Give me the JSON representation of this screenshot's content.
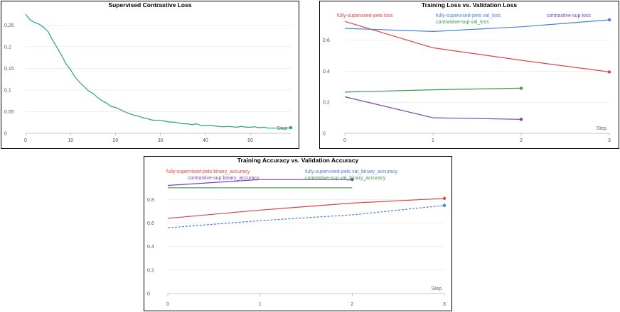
{
  "chart_data": [
    {
      "type": "line",
      "title": "Supervised Contrastive Loss",
      "xlabel": "Step",
      "ylabel": "",
      "xlim": [
        0,
        59
      ],
      "ylim": [
        0,
        0.28
      ],
      "xticks": [
        0,
        10,
        20,
        30,
        40,
        50
      ],
      "yticks": [
        0,
        0.05,
        0.1,
        0.15,
        0.2,
        0.25
      ],
      "ytick_labels": [
        "0",
        "0.05",
        "0.1",
        "0.15",
        "0.2",
        "0.25"
      ],
      "grid": true,
      "series": [
        {
          "name": "supervised contrastive loss",
          "color": "#2a9d8f",
          "dash": false,
          "end_marker": true,
          "x": [
            0,
            1,
            2,
            3,
            4,
            5,
            6,
            7,
            8,
            9,
            10,
            11,
            12,
            13,
            14,
            15,
            16,
            17,
            18,
            19,
            20,
            21,
            22,
            23,
            24,
            25,
            26,
            27,
            28,
            29,
            30,
            31,
            32,
            33,
            34,
            35,
            36,
            37,
            38,
            39,
            40,
            41,
            42,
            43,
            44,
            45,
            46,
            47,
            48,
            49,
            50,
            51,
            52,
            53,
            54,
            55,
            56,
            57,
            58,
            59
          ],
          "y": [
            0.275,
            0.262,
            0.256,
            0.252,
            0.245,
            0.235,
            0.215,
            0.198,
            0.18,
            0.16,
            0.147,
            0.13,
            0.118,
            0.108,
            0.098,
            0.092,
            0.083,
            0.075,
            0.07,
            0.062,
            0.06,
            0.055,
            0.05,
            0.046,
            0.042,
            0.04,
            0.036,
            0.034,
            0.031,
            0.03,
            0.03,
            0.028,
            0.026,
            0.026,
            0.024,
            0.022,
            0.022,
            0.02,
            0.022,
            0.018,
            0.018,
            0.018,
            0.017,
            0.016,
            0.015,
            0.016,
            0.015,
            0.014,
            0.016,
            0.014,
            0.014,
            0.015,
            0.013,
            0.014,
            0.012,
            0.012,
            0.012,
            0.011,
            0.012,
            0.013
          ]
        }
      ]
    },
    {
      "type": "line",
      "title": "Training Loss vs. Validation Loss",
      "xlabel": "Step",
      "ylabel": "",
      "xlim": [
        0,
        3
      ],
      "ylim": [
        0,
        0.78
      ],
      "xticks": [
        0,
        1,
        2,
        3
      ],
      "yticks": [
        0,
        0.2,
        0.4,
        0.6
      ],
      "ytick_labels": [
        "0",
        "0.2",
        "0.4",
        "0.6"
      ],
      "grid": true,
      "series": [
        {
          "name": "fully-supervised-pets loss",
          "color": "#e04444",
          "dash": false,
          "end_marker": true,
          "x": [
            0,
            1,
            2,
            3
          ],
          "y": [
            0.72,
            0.55,
            0.47,
            0.395
          ]
        },
        {
          "name": "fully-supervised-pets val_loss",
          "color": "#4a7fd4",
          "dash": false,
          "end_marker": true,
          "x": [
            0,
            1,
            2,
            3
          ],
          "y": [
            0.675,
            0.655,
            0.685,
            0.73
          ]
        },
        {
          "name": "contrastive-sup val_loss",
          "color": "#3a9a4a",
          "dash": false,
          "end_marker": true,
          "x": [
            0,
            1,
            2
          ],
          "y": [
            0.265,
            0.28,
            0.29
          ]
        },
        {
          "name": "contrastive-sup loss",
          "color": "#7a3fb8",
          "dash": false,
          "end_marker": true,
          "x": [
            0,
            1,
            2
          ],
          "y": [
            0.235,
            0.1,
            0.09
          ]
        }
      ]
    },
    {
      "type": "line",
      "title": "Training Accuracy vs. Validation Accuracy",
      "xlabel": "Step",
      "ylabel": "",
      "xlim": [
        0,
        3
      ],
      "ylim": [
        0,
        1.08
      ],
      "xticks": [
        0,
        1,
        2,
        3
      ],
      "yticks": [
        0,
        0.2,
        0.4,
        0.6,
        0.8
      ],
      "ytick_labels": [
        "0",
        "0.2",
        "0.4",
        "0.6",
        "0.8"
      ],
      "grid": true,
      "series": [
        {
          "name": "fully-supervised-pets binary_accuracy",
          "color": "#e04444",
          "dash": false,
          "end_marker": true,
          "x": [
            0,
            1,
            2,
            3
          ],
          "y": [
            0.64,
            0.71,
            0.77,
            0.81
          ]
        },
        {
          "name": "contrastive-sup binary_accuracy",
          "color": "#7a3fb8",
          "dash": false,
          "end_marker": true,
          "x": [
            0,
            1,
            2
          ],
          "y": [
            0.92,
            0.97,
            0.97
          ]
        },
        {
          "name": "fully-supervised-pets val_binary_accuracy",
          "color": "#4a7fd4",
          "dash": true,
          "end_marker": true,
          "x": [
            0,
            1,
            2,
            3
          ],
          "y": [
            0.56,
            0.62,
            0.67,
            0.75
          ]
        },
        {
          "name": "contrastive-sup val_binary_accuracy",
          "color": "#3a9a4a",
          "dash": false,
          "end_marker": false,
          "x": [
            0,
            1,
            2
          ],
          "y": [
            0.9,
            0.9,
            0.9
          ]
        }
      ]
    }
  ]
}
